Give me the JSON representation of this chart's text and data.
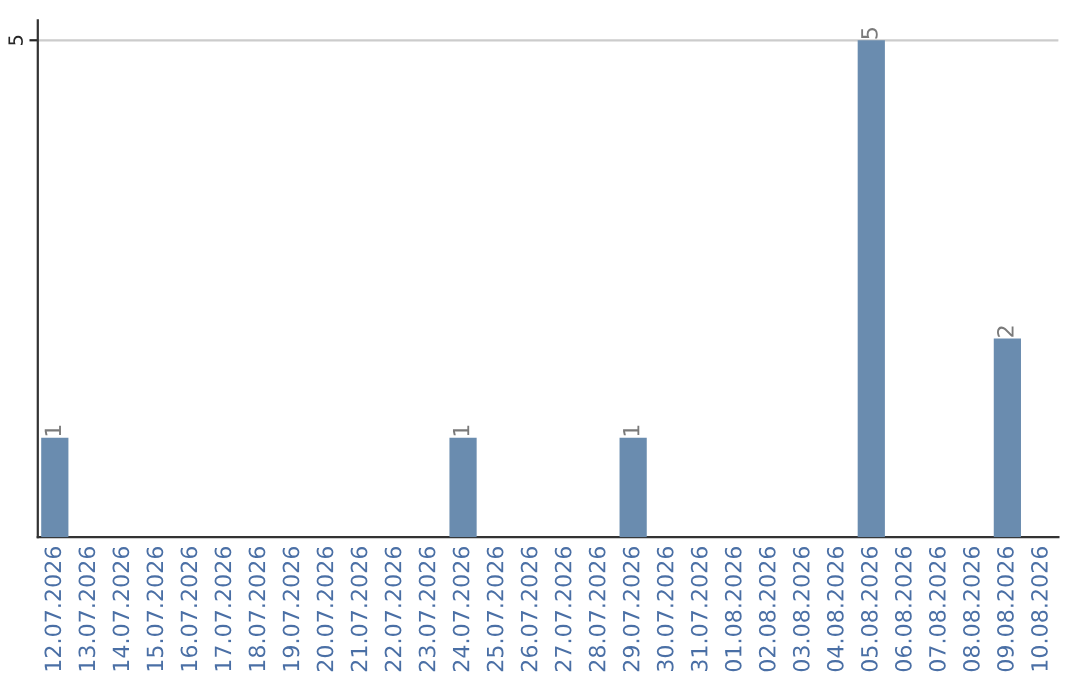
{
  "chart_data": {
    "type": "bar",
    "categories": [
      "12.07.2026",
      "13.07.2026",
      "14.07.2026",
      "15.07.2026",
      "16.07.2026",
      "17.07.2026",
      "18.07.2026",
      "19.07.2026",
      "20.07.2026",
      "21.07.2026",
      "22.07.2026",
      "23.07.2026",
      "24.07.2026",
      "25.07.2026",
      "26.07.2026",
      "27.07.2026",
      "28.07.2026",
      "29.07.2026",
      "30.07.2026",
      "31.07.2026",
      "01.08.2026",
      "02.08.2026",
      "03.08.2026",
      "04.08.2026",
      "05.08.2026",
      "06.08.2026",
      "07.08.2026",
      "08.08.2026",
      "09.08.2026",
      "10.08.2026"
    ],
    "values": [
      1,
      0,
      0,
      0,
      0,
      0,
      0,
      0,
      0,
      0,
      0,
      0,
      1,
      0,
      0,
      0,
      0,
      1,
      0,
      0,
      0,
      0,
      0,
      0,
      5,
      0,
      0,
      0,
      2,
      0
    ],
    "value_labels": [
      "1",
      null,
      null,
      null,
      null,
      null,
      null,
      null,
      null,
      null,
      null,
      null,
      "1",
      null,
      null,
      null,
      null,
      "1",
      null,
      null,
      null,
      null,
      null,
      null,
      "5",
      null,
      null,
      null,
      "2",
      null
    ],
    "color": "#6a8caf",
    "ylim": [
      0,
      5.2
    ],
    "yticks": [
      5
    ],
    "grid": "y"
  }
}
